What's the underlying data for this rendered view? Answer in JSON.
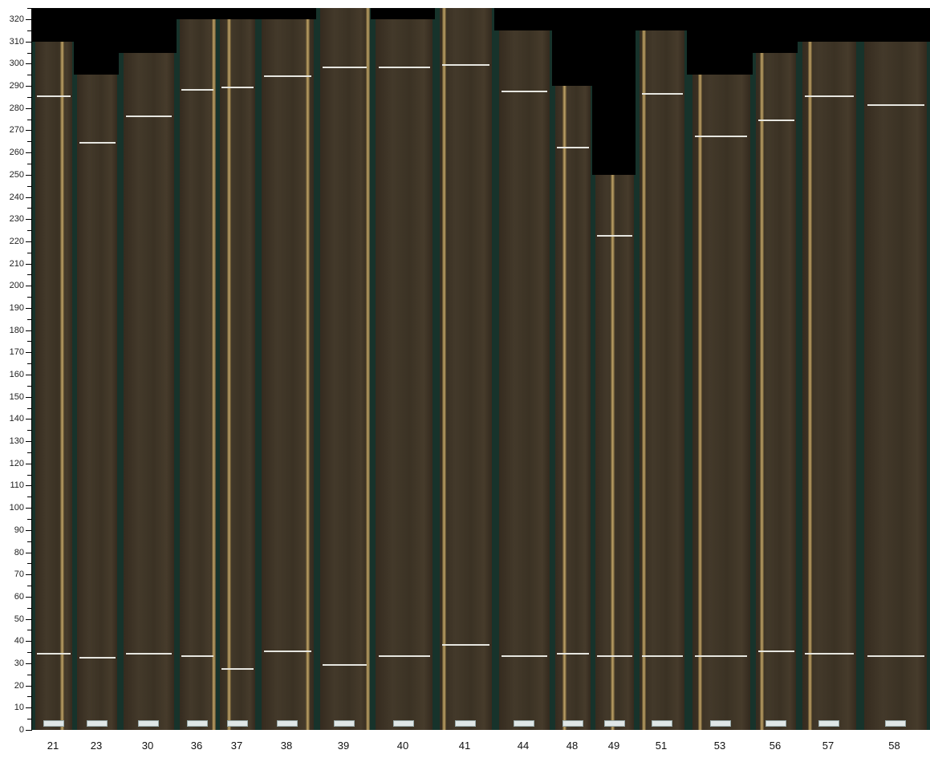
{
  "chart_data": {
    "type": "image-strip",
    "ylim": [
      0,
      325
    ],
    "y_ticks": [
      0,
      10,
      20,
      30,
      40,
      50,
      60,
      70,
      80,
      90,
      100,
      110,
      120,
      130,
      140,
      150,
      160,
      170,
      180,
      190,
      200,
      210,
      220,
      230,
      240,
      250,
      260,
      270,
      280,
      290,
      300,
      310,
      320
    ],
    "minor_tick_step": 5,
    "colors": {
      "background": "#000000",
      "board_backing": "#17332b",
      "wood": "#3d3325",
      "sapwood": "#d8b874",
      "marker": "#e6e6e0"
    },
    "boards": [
      {
        "label": "21",
        "top": 310,
        "marks": [
          285,
          34
        ],
        "sap": 0.68
      },
      {
        "label": "23",
        "top": 295,
        "marks": [
          264,
          32
        ],
        "sap": -1
      },
      {
        "label": "30",
        "top": 305,
        "marks": [
          276,
          34
        ],
        "sap": -1
      },
      {
        "label": "36",
        "top": 320,
        "marks": [
          288,
          33
        ],
        "sap": 0.9
      },
      {
        "label": "37",
        "top": 320,
        "marks": [
          289,
          27
        ],
        "sap": 0.2
      },
      {
        "label": "38",
        "top": 320,
        "marks": [
          294,
          35
        ],
        "sap": 0.85
      },
      {
        "label": "39",
        "top": 325,
        "marks": [
          298,
          29
        ],
        "sap": 0.95
      },
      {
        "label": "40",
        "top": 320,
        "marks": [
          298,
          33
        ],
        "sap": -1
      },
      {
        "label": "41",
        "top": 325,
        "marks": [
          299,
          38
        ],
        "sap": 0.05
      },
      {
        "label": "44",
        "top": 315,
        "marks": [
          287,
          33
        ],
        "sap": -1
      },
      {
        "label": "48",
        "top": 290,
        "marks": [
          262,
          34
        ],
        "sap": 0.2
      },
      {
        "label": "49",
        "top": 250,
        "marks": [
          222,
          33
        ],
        "sap": 0.4
      },
      {
        "label": "51",
        "top": 315,
        "marks": [
          286,
          33
        ],
        "sap": 0.05
      },
      {
        "label": "53",
        "top": 295,
        "marks": [
          267,
          33
        ],
        "sap": 0.1
      },
      {
        "label": "56",
        "top": 305,
        "marks": [
          274,
          35
        ],
        "sap": 0.1
      },
      {
        "label": "57",
        "top": 310,
        "marks": [
          285,
          34
        ],
        "sap": 0.1
      },
      {
        "label": "58",
        "top": 310,
        "marks": [
          281,
          33
        ],
        "sap": -1
      }
    ]
  }
}
